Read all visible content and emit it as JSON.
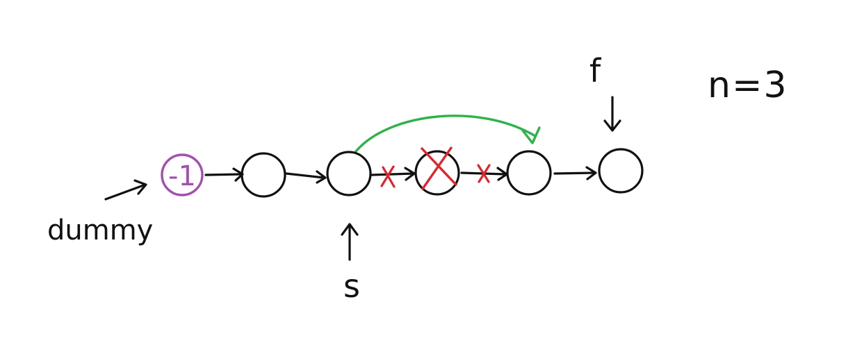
{
  "diagram": {
    "type": "linked-list-remove-nth-from-end",
    "parameter_label": "n=3",
    "dummy_label": "dummy",
    "dummy_value": "-1",
    "slow_pointer_label": "s",
    "fast_pointer_label": "f",
    "node_count": 6,
    "removed_node_index": 3,
    "colors": {
      "ink": "#111111",
      "dummy": "#a24fb0",
      "removed": "#e0242c",
      "relink": "#2db34a",
      "background": "#ffffff"
    }
  }
}
